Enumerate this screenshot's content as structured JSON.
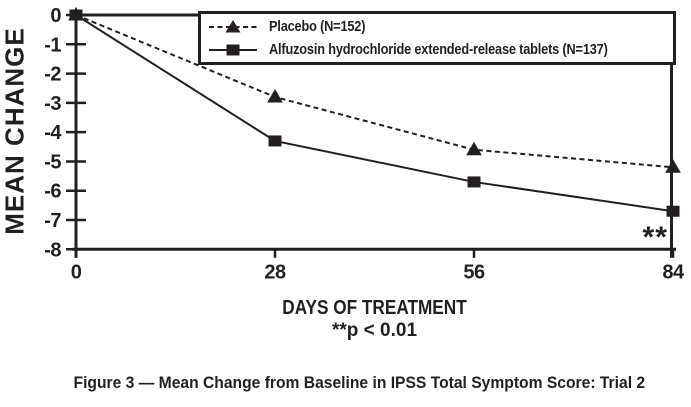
{
  "figure": {
    "caption": "Figure 3 — Mean Change from Baseline in IPSS Total Symptom Score: Trial 2",
    "footnote": "**p < 0.01"
  },
  "chart_data": {
    "type": "line",
    "title": "",
    "xlabel": "DAYS OF TREATMENT",
    "ylabel": "MEAN CHANGE",
    "x": [
      0,
      28,
      56,
      84
    ],
    "x_ticks": [
      0,
      28,
      56,
      84
    ],
    "y_ticks": [
      0,
      -1,
      -2,
      -3,
      -4,
      -5,
      -6,
      -7,
      -8
    ],
    "xlim": [
      0,
      84
    ],
    "ylim": [
      -8,
      0
    ],
    "grid": false,
    "legend_position": "top-right",
    "series": [
      {
        "name": "Placebo (N=152)",
        "line": "dashed",
        "marker": "triangle",
        "values": [
          0,
          -2.8,
          -4.6,
          -5.2
        ]
      },
      {
        "name": "Alfuzosin hydrochloride extended-release tablets (N=137)",
        "line": "solid",
        "marker": "square",
        "values": [
          0,
          -4.3,
          -5.7,
          -6.7
        ]
      }
    ],
    "annotation": {
      "text": "**",
      "x": 81.5,
      "y": -7.5
    }
  },
  "colors": {
    "ink": "#231f20",
    "background": "#ffffff"
  }
}
